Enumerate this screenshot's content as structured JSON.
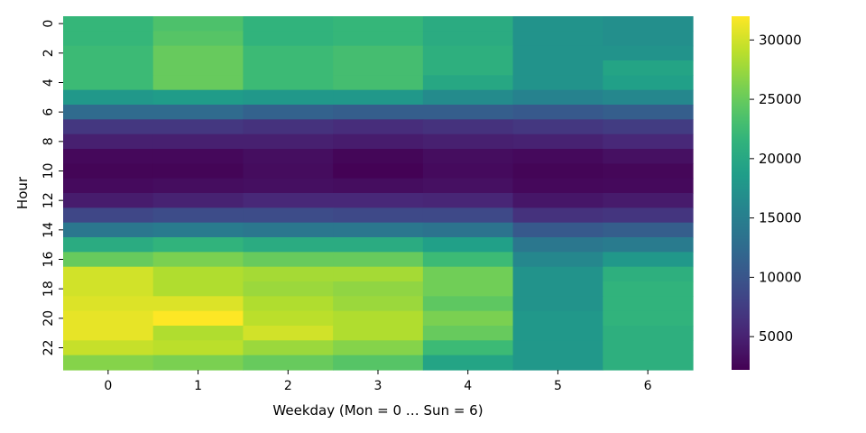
{
  "chart_data": {
    "type": "heatmap",
    "title": "",
    "xlabel": "Weekday (Mon = 0 … Sun = 6)",
    "ylabel": "Hour",
    "x_categories": [
      "0",
      "1",
      "2",
      "3",
      "4",
      "5",
      "6"
    ],
    "y_categories": [
      "0",
      "1",
      "2",
      "3",
      "4",
      "5",
      "6",
      "7",
      "8",
      "9",
      "10",
      "11",
      "12",
      "13",
      "14",
      "15",
      "16",
      "17",
      "18",
      "19",
      "20",
      "21",
      "22",
      "23"
    ],
    "y_tick_labels": [
      "0",
      "2",
      "4",
      "6",
      "8",
      "10",
      "12",
      "14",
      "16",
      "18",
      "20",
      "22"
    ],
    "colormap": "viridis",
    "colorbar": {
      "vmin": 2200,
      "vmax": 32000,
      "ticks": [
        5000,
        10000,
        15000,
        20000,
        25000,
        30000
      ],
      "tick_labels": [
        "5000",
        "10000",
        "15000",
        "20000",
        "25000",
        "30000"
      ]
    },
    "values": [
      [
        22000,
        23500,
        21500,
        22000,
        20500,
        17500,
        17000
      ],
      [
        22000,
        24000,
        21500,
        22000,
        20500,
        17500,
        17000
      ],
      [
        22500,
        25000,
        22500,
        23000,
        21000,
        17500,
        17500
      ],
      [
        22500,
        25000,
        22500,
        23000,
        21000,
        17500,
        19500
      ],
      [
        22500,
        25000,
        22500,
        23000,
        20000,
        17500,
        19000
      ],
      [
        18000,
        18500,
        18000,
        18000,
        16500,
        15500,
        16000
      ],
      [
        12500,
        12500,
        11500,
        11000,
        11000,
        10500,
        11000
      ],
      [
        7000,
        7000,
        6500,
        6000,
        6500,
        7000,
        7500
      ],
      [
        4800,
        4800,
        4800,
        4500,
        4800,
        5000,
        5500
      ],
      [
        2800,
        2800,
        3300,
        2600,
        3200,
        2900,
        3500
      ],
      [
        2500,
        2500,
        3100,
        2300,
        3000,
        2500,
        2700
      ],
      [
        3000,
        3200,
        3400,
        3200,
        3500,
        2800,
        2900
      ],
      [
        4500,
        5000,
        5500,
        5500,
        5300,
        4000,
        4400
      ],
      [
        8500,
        9000,
        9000,
        8700,
        8700,
        6500,
        6800
      ],
      [
        14000,
        14500,
        14000,
        14000,
        13500,
        10500,
        11000
      ],
      [
        20500,
        21500,
        20500,
        20500,
        19000,
        14000,
        14500
      ],
      [
        25000,
        26000,
        25000,
        25000,
        22500,
        16000,
        18000
      ],
      [
        30000,
        28500,
        28000,
        28000,
        25500,
        17500,
        21000
      ],
      [
        30000,
        28500,
        27500,
        27000,
        25500,
        17500,
        21500
      ],
      [
        30500,
        30500,
        28500,
        27500,
        24500,
        17500,
        21500
      ],
      [
        31000,
        32000,
        29000,
        28500,
        26000,
        18000,
        21500
      ],
      [
        31000,
        28500,
        30000,
        28500,
        25000,
        18000,
        21000
      ],
      [
        29500,
        29000,
        27500,
        26500,
        22500,
        18000,
        21000
      ],
      [
        26500,
        26000,
        25000,
        24000,
        19500,
        18000,
        21000
      ]
    ]
  }
}
